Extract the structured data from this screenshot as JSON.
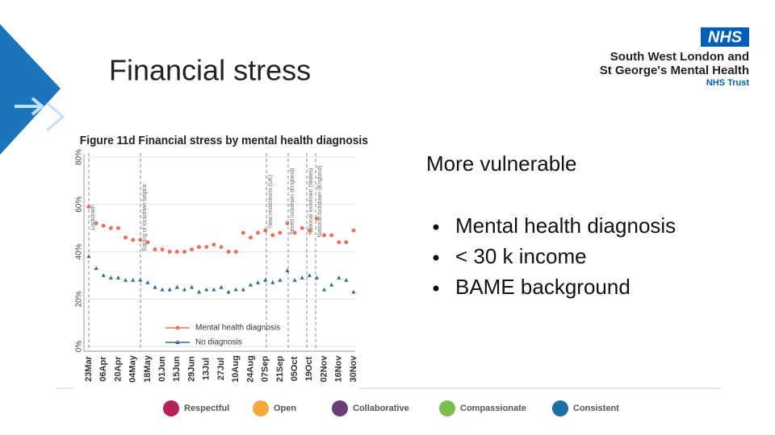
{
  "slide": {
    "title": "Financial stress",
    "heading": "More vulnerable",
    "bullets": [
      "Mental health diagnosis",
      "< 30 k income",
      "BAME background"
    ]
  },
  "logo": {
    "badge": "NHS",
    "lines": [
      "South West London and",
      "St George's Mental Health",
      "NHS Trust"
    ]
  },
  "footer": {
    "values": [
      "Respectful",
      "Open",
      "Collaborative",
      "Compassionate",
      "Consistent"
    ]
  },
  "chart_data": {
    "type": "line",
    "title": "Figure 11d Financial stress by mental health diagnosis",
    "categories": [
      "23Mar",
      null,
      "06Apr",
      null,
      "20Apr",
      null,
      "04May",
      null,
      "18May",
      null,
      "01Jun",
      null,
      "15Jun",
      null,
      "29Jun",
      null,
      "13Jul",
      null,
      "27Jul",
      null,
      "10Aug",
      null,
      "24Aug",
      null,
      "07Sep",
      null,
      "21Sep",
      null,
      "05Oct",
      null,
      "19Oct",
      null,
      "02Nov",
      null,
      "16Nov",
      null,
      "30Nov"
    ],
    "series": [
      {
        "name": "Mental health diagnosis",
        "color": "#e8735a",
        "marker": "circle",
        "values": [
          59,
          52,
          51,
          50,
          50,
          46,
          45,
          45,
          44,
          41,
          41,
          40,
          40,
          40,
          41,
          42,
          42,
          43,
          42,
          40,
          40,
          48,
          46,
          48,
          49,
          47,
          48,
          52,
          48,
          50,
          49,
          54,
          47,
          47,
          44,
          44,
          49
        ]
      },
      {
        "name": "No diagnosis",
        "color": "#2e6e8e",
        "marker": "triangle",
        "values": [
          38,
          33,
          30,
          29,
          29,
          28,
          28,
          28,
          27,
          25,
          24,
          24,
          25,
          24,
          25,
          23,
          24,
          24,
          25,
          23,
          24,
          24,
          26,
          27,
          28,
          27,
          28,
          32,
          28,
          29,
          30,
          29,
          24,
          26,
          29,
          28,
          23
        ]
      }
    ],
    "ylim": [
      0,
      80
    ],
    "yticks": [
      {
        "value": 0,
        "label": "0%"
      },
      {
        "value": 20,
        "label": "20%"
      },
      {
        "value": 40,
        "label": "40%"
      },
      {
        "value": 60,
        "label": "60%"
      },
      {
        "value": 80,
        "label": "80%"
      }
    ],
    "grid": true,
    "legend": "bottom",
    "annotations": [
      "Lockdown",
      "Easing of lockdown begins",
      "New restrictions (UK)",
      "Tiered lockdown (England)",
      "National lockdown (Wales)",
      "National lockdown (England)"
    ]
  }
}
